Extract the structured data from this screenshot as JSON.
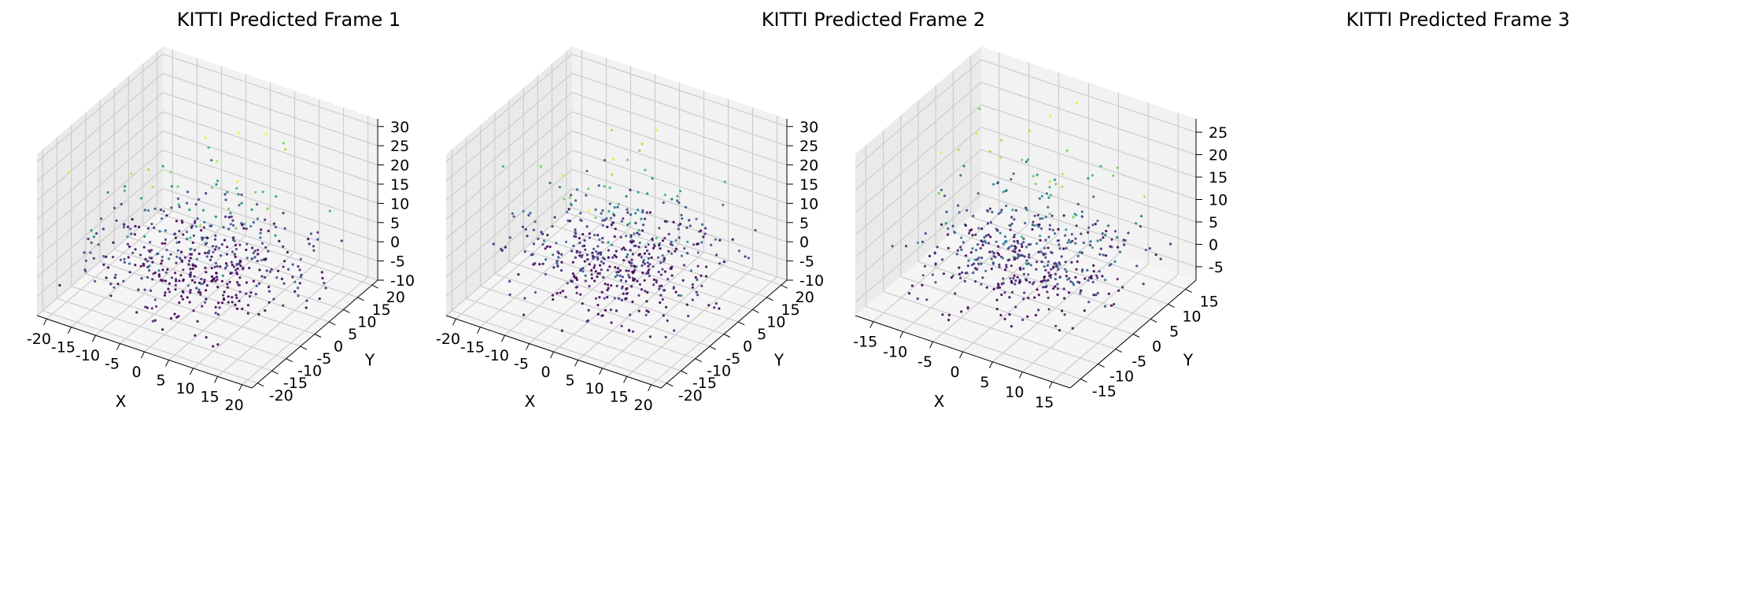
{
  "figure": {
    "titles": [
      "KITTI Predicted Frame 1",
      "KITTI Predicted Frame 2",
      "KITTI Predicted Frame 3"
    ]
  },
  "chart_data": [
    {
      "type": "scatter",
      "title": "KITTI Predicted Frame 1",
      "xlabel": "X",
      "ylabel": "Y",
      "zlabel": "",
      "xlim": [
        -22,
        22
      ],
      "ylim": [
        -22,
        22
      ],
      "zlim": [
        -10,
        32
      ],
      "xticks": [
        -20,
        -15,
        -10,
        -5,
        0,
        5,
        10,
        15,
        20
      ],
      "yticks": [
        -20,
        -15,
        -10,
        -5,
        0,
        5,
        10,
        15,
        20
      ],
      "zticks": [
        -10,
        -5,
        0,
        5,
        10,
        15,
        20,
        25,
        30
      ],
      "point_count": 500,
      "color_by": "z",
      "colormap": "viridis",
      "grid": true,
      "note_points": "approximately 500 points, dense near origin, spread roughly within x,y ±20 and z -5 to 30"
    },
    {
      "type": "scatter",
      "title": "KITTI Predicted Frame 2",
      "xlabel": "X",
      "ylabel": "Y",
      "zlabel": "",
      "xlim": [
        -22,
        22
      ],
      "ylim": [
        -22,
        22
      ],
      "zlim": [
        -10,
        32
      ],
      "xticks": [
        -20,
        -15,
        -10,
        -5,
        0,
        5,
        10,
        15,
        20
      ],
      "yticks": [
        -20,
        -15,
        -10,
        -5,
        0,
        5,
        10,
        15,
        20
      ],
      "zticks": [
        -10,
        -5,
        0,
        5,
        10,
        15,
        20,
        25,
        30
      ],
      "point_count": 500,
      "color_by": "z",
      "colormap": "viridis",
      "grid": true
    },
    {
      "type": "scatter",
      "title": "KITTI Predicted Frame 3",
      "xlabel": "X",
      "ylabel": "Y",
      "zlabel": "",
      "xlim": [
        -18,
        18
      ],
      "ylim": [
        -18,
        18
      ],
      "zlim": [
        -8,
        28
      ],
      "xticks": [
        -15,
        -10,
        -5,
        0,
        5,
        10,
        15
      ],
      "yticks": [
        -15,
        -10,
        -5,
        0,
        5,
        10,
        15
      ],
      "zticks": [
        -5,
        0,
        5,
        10,
        15,
        20,
        25
      ],
      "point_count": 500,
      "color_by": "z",
      "colormap": "viridis",
      "grid": true
    }
  ],
  "colors": {
    "pane_left": "#eaeaea",
    "pane_back": "#f2f2f2",
    "pane_floor": "#f5f5f5",
    "grid": "#cccccc",
    "axis": "#000000"
  }
}
